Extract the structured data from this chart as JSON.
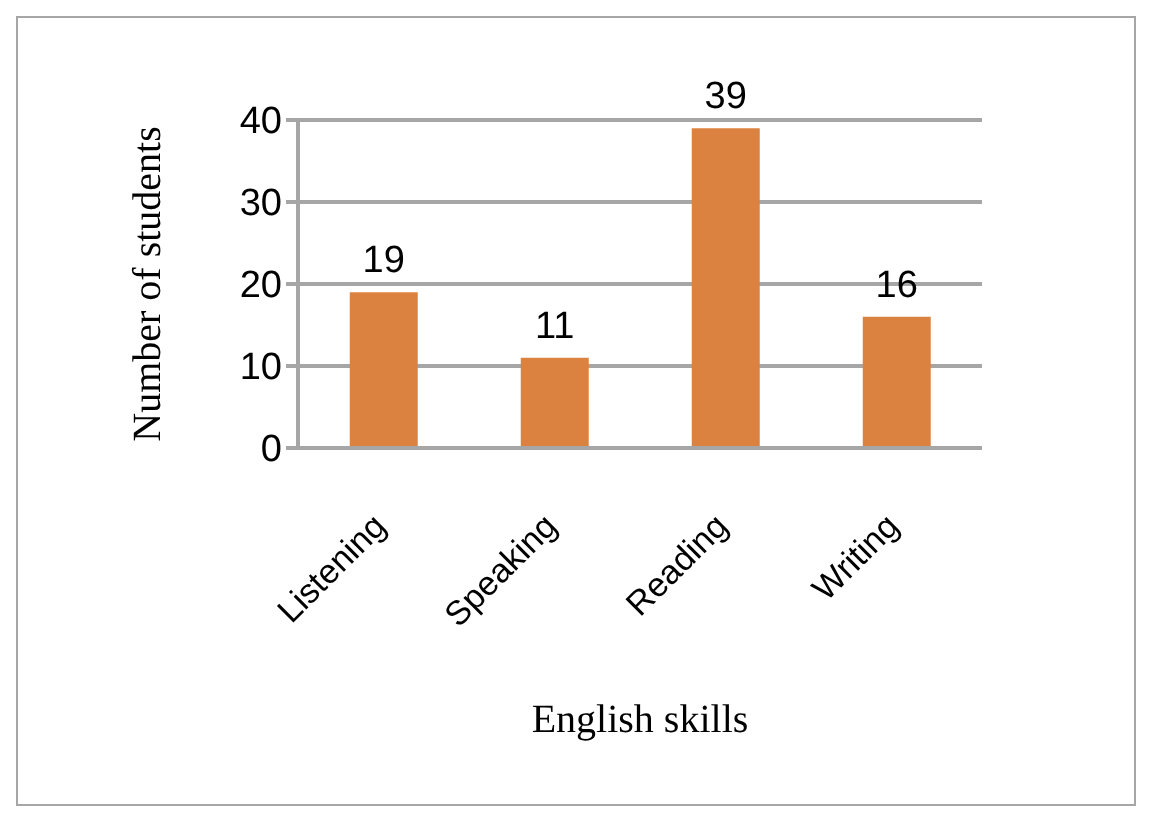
{
  "chart_data": {
    "type": "bar",
    "xlabel": "English skills",
    "ylabel": "Number of students",
    "categories": [
      "Listening",
      "Speaking",
      "Reading",
      "Writing"
    ],
    "values": [
      19,
      11,
      39,
      16
    ],
    "color": "#dc8240",
    "ylim": [
      0,
      40
    ],
    "yticks": [
      0,
      10,
      20,
      30,
      40
    ],
    "grid": "y",
    "data_labels": true
  }
}
